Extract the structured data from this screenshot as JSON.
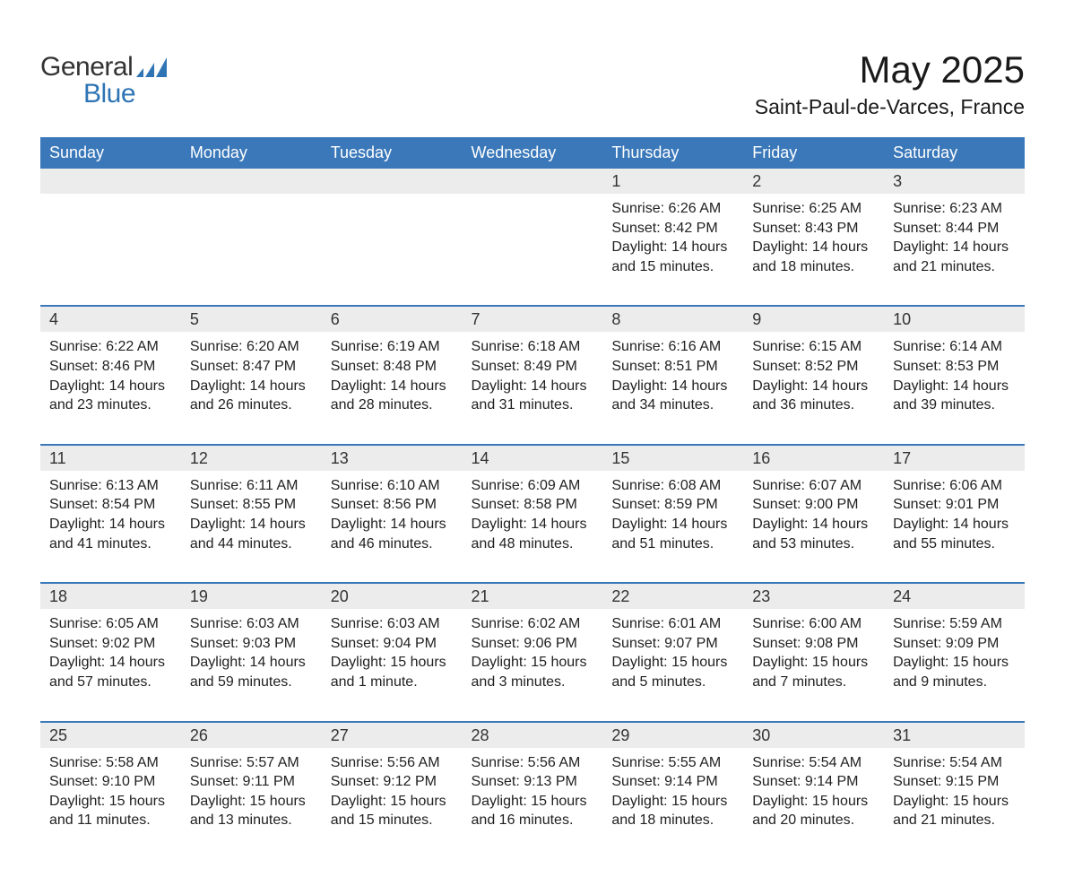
{
  "logo": {
    "general": "General",
    "blue": "Blue"
  },
  "title": "May 2025",
  "subtitle": "Saint-Paul-de-Varces, France",
  "colors": {
    "header_bg": "#3a78b9",
    "header_text": "#ffffff",
    "daynum_bg": "#ececec",
    "daynum_border": "#3a78b9",
    "body_text": "#212121",
    "logo_blue": "#2f74b5",
    "logo_dark": "#333333",
    "page_bg": "#ffffff"
  },
  "fonts": {
    "title_size": 42,
    "subtitle_size": 23,
    "header_size": 18,
    "body_size": 16
  },
  "day_headers": [
    "Sunday",
    "Monday",
    "Tuesday",
    "Wednesday",
    "Thursday",
    "Friday",
    "Saturday"
  ],
  "weeks": [
    {
      "nums": [
        "",
        "",
        "",
        "",
        "1",
        "2",
        "3"
      ],
      "cells": [
        "",
        "",
        "",
        "",
        "Sunrise: 6:26 AM\nSunset: 8:42 PM\nDaylight: 14 hours and 15 minutes.",
        "Sunrise: 6:25 AM\nSunset: 8:43 PM\nDaylight: 14 hours and 18 minutes.",
        "Sunrise: 6:23 AM\nSunset: 8:44 PM\nDaylight: 14 hours and 21 minutes."
      ]
    },
    {
      "nums": [
        "4",
        "5",
        "6",
        "7",
        "8",
        "9",
        "10"
      ],
      "cells": [
        "Sunrise: 6:22 AM\nSunset: 8:46 PM\nDaylight: 14 hours and 23 minutes.",
        "Sunrise: 6:20 AM\nSunset: 8:47 PM\nDaylight: 14 hours and 26 minutes.",
        "Sunrise: 6:19 AM\nSunset: 8:48 PM\nDaylight: 14 hours and 28 minutes.",
        "Sunrise: 6:18 AM\nSunset: 8:49 PM\nDaylight: 14 hours and 31 minutes.",
        "Sunrise: 6:16 AM\nSunset: 8:51 PM\nDaylight: 14 hours and 34 minutes.",
        "Sunrise: 6:15 AM\nSunset: 8:52 PM\nDaylight: 14 hours and 36 minutes.",
        "Sunrise: 6:14 AM\nSunset: 8:53 PM\nDaylight: 14 hours and 39 minutes."
      ]
    },
    {
      "nums": [
        "11",
        "12",
        "13",
        "14",
        "15",
        "16",
        "17"
      ],
      "cells": [
        "Sunrise: 6:13 AM\nSunset: 8:54 PM\nDaylight: 14 hours and 41 minutes.",
        "Sunrise: 6:11 AM\nSunset: 8:55 PM\nDaylight: 14 hours and 44 minutes.",
        "Sunrise: 6:10 AM\nSunset: 8:56 PM\nDaylight: 14 hours and 46 minutes.",
        "Sunrise: 6:09 AM\nSunset: 8:58 PM\nDaylight: 14 hours and 48 minutes.",
        "Sunrise: 6:08 AM\nSunset: 8:59 PM\nDaylight: 14 hours and 51 minutes.",
        "Sunrise: 6:07 AM\nSunset: 9:00 PM\nDaylight: 14 hours and 53 minutes.",
        "Sunrise: 6:06 AM\nSunset: 9:01 PM\nDaylight: 14 hours and 55 minutes."
      ]
    },
    {
      "nums": [
        "18",
        "19",
        "20",
        "21",
        "22",
        "23",
        "24"
      ],
      "cells": [
        "Sunrise: 6:05 AM\nSunset: 9:02 PM\nDaylight: 14 hours and 57 minutes.",
        "Sunrise: 6:03 AM\nSunset: 9:03 PM\nDaylight: 14 hours and 59 minutes.",
        "Sunrise: 6:03 AM\nSunset: 9:04 PM\nDaylight: 15 hours and 1 minute.",
        "Sunrise: 6:02 AM\nSunset: 9:06 PM\nDaylight: 15 hours and 3 minutes.",
        "Sunrise: 6:01 AM\nSunset: 9:07 PM\nDaylight: 15 hours and 5 minutes.",
        "Sunrise: 6:00 AM\nSunset: 9:08 PM\nDaylight: 15 hours and 7 minutes.",
        "Sunrise: 5:59 AM\nSunset: 9:09 PM\nDaylight: 15 hours and 9 minutes."
      ]
    },
    {
      "nums": [
        "25",
        "26",
        "27",
        "28",
        "29",
        "30",
        "31"
      ],
      "cells": [
        "Sunrise: 5:58 AM\nSunset: 9:10 PM\nDaylight: 15 hours and 11 minutes.",
        "Sunrise: 5:57 AM\nSunset: 9:11 PM\nDaylight: 15 hours and 13 minutes.",
        "Sunrise: 5:56 AM\nSunset: 9:12 PM\nDaylight: 15 hours and 15 minutes.",
        "Sunrise: 5:56 AM\nSunset: 9:13 PM\nDaylight: 15 hours and 16 minutes.",
        "Sunrise: 5:55 AM\nSunset: 9:14 PM\nDaylight: 15 hours and 18 minutes.",
        "Sunrise: 5:54 AM\nSunset: 9:14 PM\nDaylight: 15 hours and 20 minutes.",
        "Sunrise: 5:54 AM\nSunset: 9:15 PM\nDaylight: 15 hours and 21 minutes."
      ]
    }
  ]
}
